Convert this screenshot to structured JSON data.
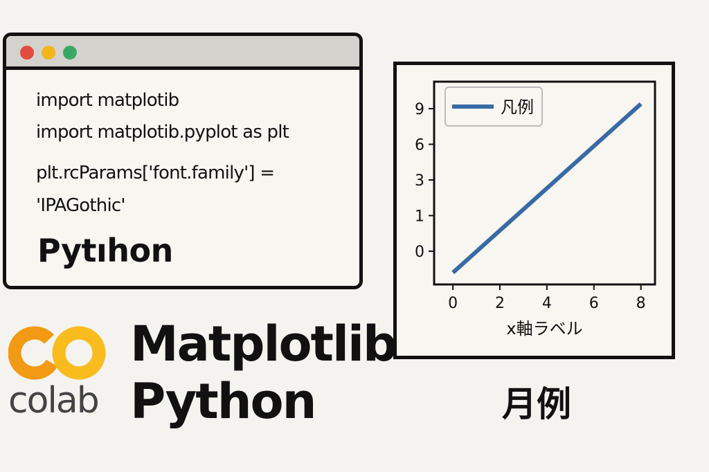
{
  "code_window": {
    "lines": [
      "import matplotib",
      "import matplotib.pyplot as plt",
      "plt.rcParams['font.family'] =",
      "'IPAGothic'"
    ],
    "big_text": "Pytıhon"
  },
  "logo": {
    "name": "colab",
    "colors": {
      "orange": "#f29a14",
      "yellow": "#f9bc1e",
      "text": "#434343"
    }
  },
  "headline": {
    "line1": "Matplotlib",
    "line2": "Python"
  },
  "chart_data": {
    "type": "line",
    "x": [
      0,
      8
    ],
    "series": [
      {
        "name": "凡例",
        "values": [
          -0.6,
          9.4
        ],
        "color": "#3a6aa4"
      }
    ],
    "xticks": [
      0,
      2,
      4,
      6,
      8
    ],
    "yticks": [
      0,
      1,
      3,
      6,
      9
    ],
    "ytick_positions": [
      0,
      1,
      2,
      3,
      4
    ],
    "xlabel": "x軸ラベル",
    "ylabel": "",
    "title": "",
    "xlim": [
      -0.8,
      8.6
    ],
    "legend_position": "top-left",
    "grid": false
  },
  "caption_below": "月例"
}
